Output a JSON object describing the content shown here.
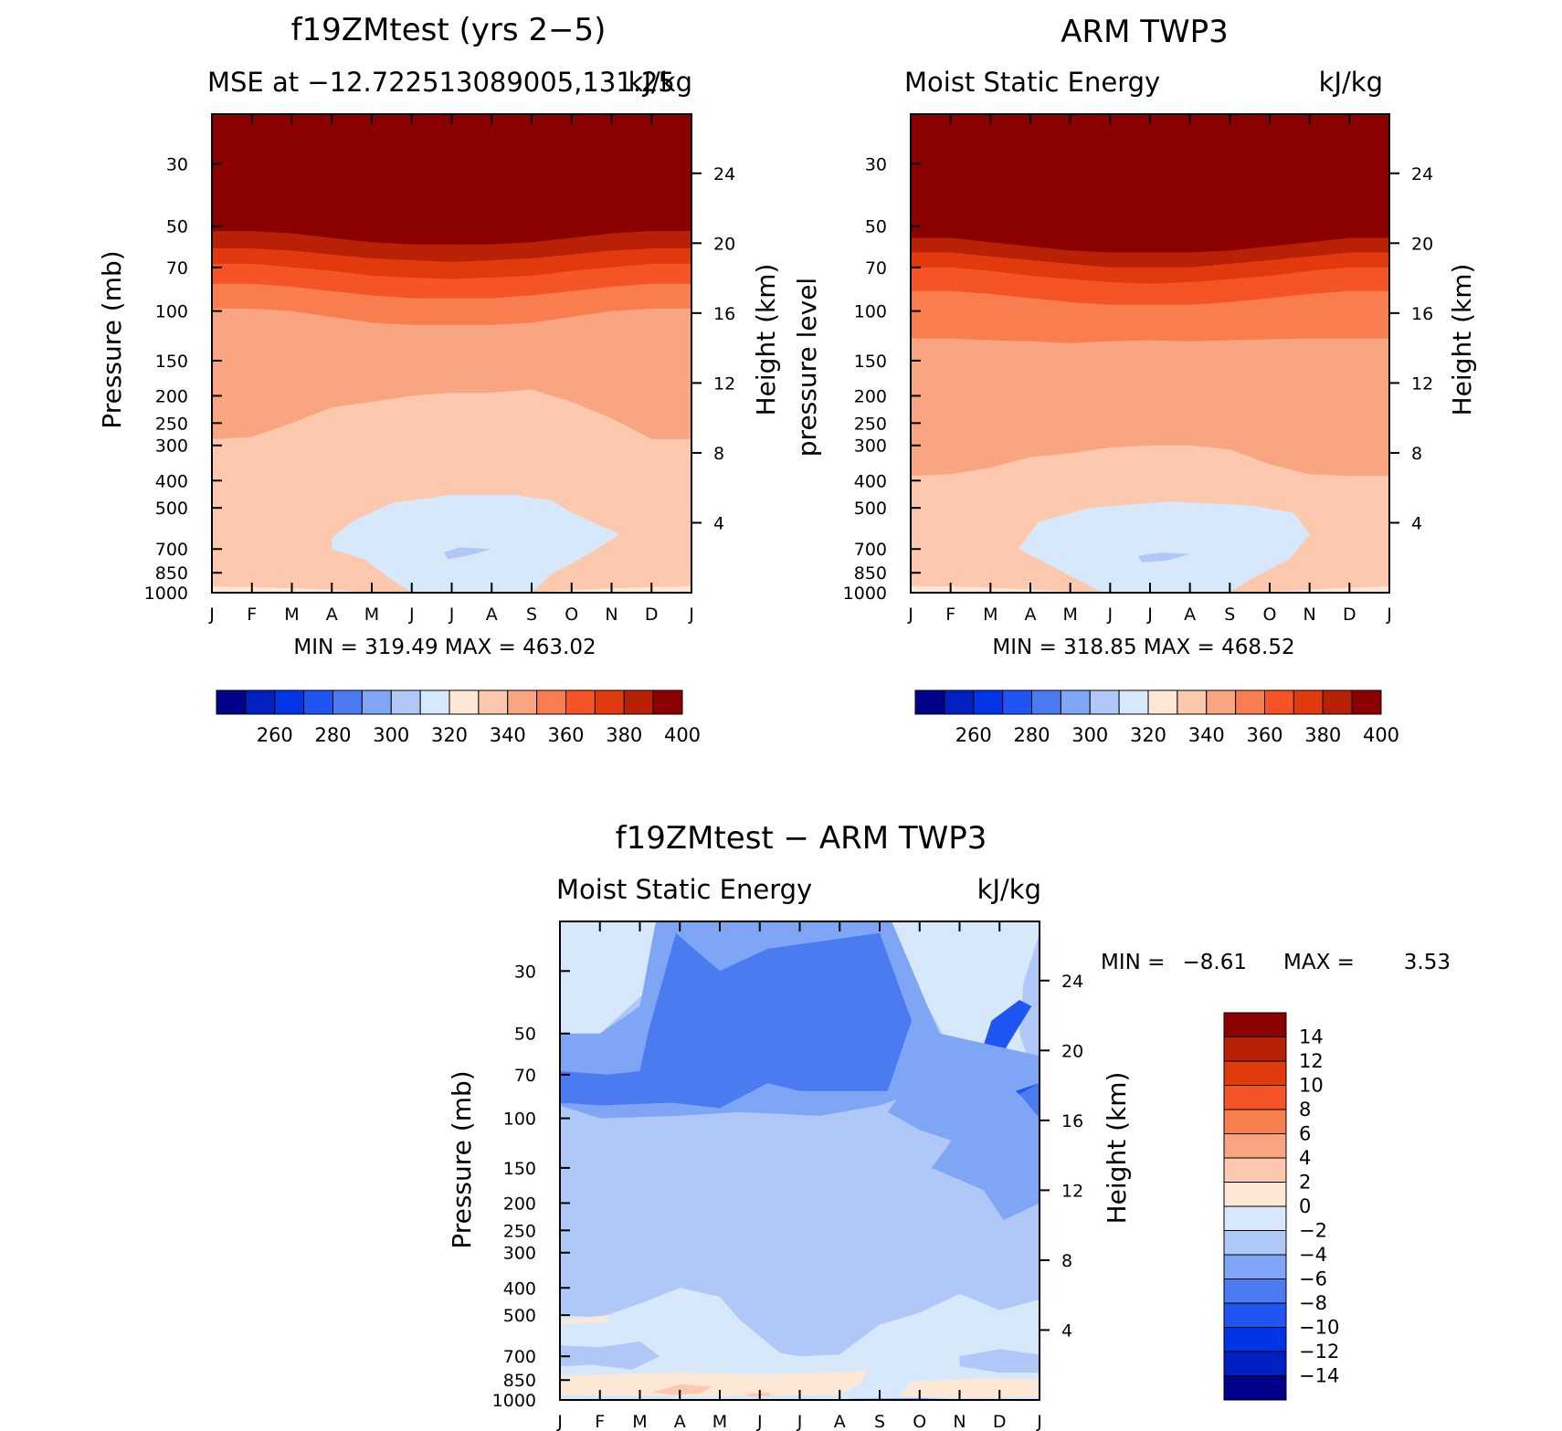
{
  "colors": {
    "scale": [
      "#00008b",
      "#0020c2",
      "#0035e6",
      "#1f55f2",
      "#4a7bf0",
      "#7fa5f5",
      "#b0c8f8",
      "#d8e8fb",
      "#fde8d6",
      "#fcc9ae",
      "#f9a582",
      "#f87e50",
      "#f55426",
      "#e03a0e",
      "#b82106",
      "#8b0000"
    ]
  },
  "chart_data": [
    {
      "type": "heatmap",
      "title": "f19ZMtest (yrs 2−5)",
      "subtitle_left": "MSE at −12.722513089005,131.25",
      "subtitle_right": "kJ/kg",
      "ylabel": "Pressure (mb)",
      "ylabel_right": "Height (km)",
      "x_ticks": [
        "J",
        "F",
        "M",
        "A",
        "M",
        "J",
        "J",
        "A",
        "S",
        "O",
        "N",
        "D",
        "J"
      ],
      "y_ticks": [
        "30",
        "50",
        "70",
        "100",
        "150",
        "200",
        "250",
        "300",
        "400",
        "500",
        "700",
        "850",
        "1000"
      ],
      "y_ticks_right": [
        "24",
        "20",
        "16",
        "12",
        "8",
        "4"
      ],
      "min_max": "MIN = 319.49  MAX = 463.02",
      "min": 319.49,
      "max": 463.02,
      "colorbar_labels": [
        "260",
        "280",
        "300",
        "320",
        "340",
        "360",
        "380",
        "400"
      ],
      "months": [
        "J",
        "F",
        "M",
        "A",
        "M",
        "J",
        "J",
        "A",
        "S",
        "O",
        "N",
        "D",
        "J"
      ],
      "contours": [
        {
          "color_index": 14,
          "pressure": [
            52,
            52,
            53,
            55,
            57,
            58,
            58,
            58,
            57,
            55,
            53,
            52,
            52
          ]
        },
        {
          "color_index": 13,
          "pressure": [
            60,
            60,
            61,
            63,
            65,
            66,
            67,
            66,
            65,
            63,
            61,
            60,
            60
          ]
        },
        {
          "color_index": 12,
          "pressure": [
            68,
            68,
            70,
            72,
            75,
            76,
            77,
            76,
            75,
            72,
            70,
            68,
            68
          ]
        },
        {
          "color_index": 11,
          "pressure": [
            80,
            80,
            82,
            85,
            88,
            90,
            90,
            90,
            88,
            85,
            82,
            80,
            80
          ]
        },
        {
          "color_index": 10,
          "pressure": [
            98,
            98,
            100,
            105,
            110,
            112,
            112,
            112,
            110,
            105,
            100,
            98,
            98
          ]
        },
        {
          "color_index": 9,
          "pressure": [
            285,
            280,
            250,
            220,
            210,
            200,
            195,
            195,
            190,
            210,
            240,
            285,
            285
          ]
        },
        {
          "color_index": 8,
          "pressure": [
            950,
            955,
            965,
            975,
            1000,
            1000,
            1000,
            1000,
            1000,
            980,
            965,
            955,
            950
          ]
        }
      ],
      "blue_region": {
        "color_index": 7,
        "months_pressure": [
          [
            3.0,
            640
          ],
          [
            3.5,
            560
          ],
          [
            4.5,
            480
          ],
          [
            6.0,
            450
          ],
          [
            7.5,
            450
          ],
          [
            8.5,
            470
          ],
          [
            9.0,
            520
          ],
          [
            10.2,
            620
          ],
          [
            9.5,
            720
          ],
          [
            8.5,
            860
          ],
          [
            8.0,
            1000
          ],
          [
            5.0,
            1000
          ],
          [
            4.5,
            900
          ],
          [
            3.8,
            760
          ],
          [
            3.0,
            700
          ]
        ]
      },
      "blue_core": {
        "color_index": 6,
        "months_pressure": [
          [
            5.8,
            720
          ],
          [
            6.2,
            690
          ],
          [
            7.0,
            700
          ],
          [
            6.4,
            740
          ],
          [
            5.9,
            760
          ]
        ]
      }
    },
    {
      "type": "heatmap",
      "title": "ARM TWP3",
      "subtitle_left": "Moist Static Energy",
      "subtitle_right": "kJ/kg",
      "ylabel": "pressure level",
      "ylabel_right": "Height (km)",
      "x_ticks": [
        "J",
        "F",
        "M",
        "A",
        "M",
        "J",
        "J",
        "A",
        "S",
        "O",
        "N",
        "D",
        "J"
      ],
      "y_ticks": [
        "30",
        "50",
        "70",
        "100",
        "150",
        "200",
        "250",
        "300",
        "400",
        "500",
        "700",
        "850",
        "1000"
      ],
      "y_ticks_right": [
        "24",
        "20",
        "16",
        "12",
        "8",
        "4"
      ],
      "min_max": "MIN = 318.85  MAX = 468.52",
      "min": 318.85,
      "max": 468.52,
      "colorbar_labels": [
        "260",
        "280",
        "300",
        "320",
        "340",
        "360",
        "380",
        "400"
      ],
      "months": [
        "J",
        "F",
        "M",
        "A",
        "M",
        "J",
        "J",
        "A",
        "S",
        "O",
        "N",
        "D",
        "J"
      ],
      "contours": [
        {
          "color_index": 14,
          "pressure": [
            55,
            55,
            57,
            59,
            61,
            62,
            62,
            62,
            61,
            59,
            57,
            55,
            55
          ]
        },
        {
          "color_index": 13,
          "pressure": [
            62,
            62,
            64,
            66,
            68,
            70,
            70,
            70,
            68,
            66,
            64,
            62,
            62
          ]
        },
        {
          "color_index": 12,
          "pressure": [
            70,
            70,
            72,
            75,
            77,
            79,
            80,
            79,
            77,
            75,
            72,
            70,
            70
          ]
        },
        {
          "color_index": 11,
          "pressure": [
            85,
            85,
            87,
            90,
            93,
            95,
            95,
            95,
            93,
            90,
            87,
            85,
            85
          ]
        },
        {
          "color_index": 10,
          "pressure": [
            125,
            125,
            127,
            128,
            130,
            128,
            127,
            128,
            127,
            126,
            125,
            125,
            125
          ]
        },
        {
          "color_index": 9,
          "pressure": [
            385,
            380,
            360,
            330,
            320,
            305,
            300,
            300,
            310,
            350,
            380,
            385,
            385
          ]
        },
        {
          "color_index": 8,
          "pressure": [
            950,
            950,
            960,
            975,
            990,
            1000,
            1000,
            1000,
            1000,
            990,
            975,
            960,
            950
          ]
        }
      ],
      "blue_region": {
        "color_index": 7,
        "months_pressure": [
          [
            2.7,
            700
          ],
          [
            3.2,
            560
          ],
          [
            4.5,
            500
          ],
          [
            6.5,
            475
          ],
          [
            8.5,
            490
          ],
          [
            9.6,
            520
          ],
          [
            10.0,
            620
          ],
          [
            9.5,
            760
          ],
          [
            8.5,
            900
          ],
          [
            8.0,
            1000
          ],
          [
            4.8,
            1000
          ],
          [
            4.2,
            900
          ],
          [
            3.5,
            800
          ]
        ]
      },
      "blue_core": {
        "color_index": 6,
        "months_pressure": [
          [
            5.7,
            740
          ],
          [
            6.3,
            720
          ],
          [
            7.0,
            730
          ],
          [
            6.4,
            770
          ],
          [
            5.8,
            780
          ]
        ]
      }
    },
    {
      "type": "heatmap",
      "title": "f19ZMtest − ARM TWP3",
      "subtitle_left": "Moist Static Energy",
      "subtitle_right": "kJ/kg",
      "ylabel": "Pressure (mb)",
      "ylabel_right": "Height (km)",
      "x_ticks": [
        "J",
        "F",
        "M",
        "A",
        "M",
        "J",
        "J",
        "A",
        "S",
        "O",
        "N",
        "D",
        "J"
      ],
      "y_ticks": [
        "30",
        "50",
        "70",
        "100",
        "150",
        "200",
        "250",
        "300",
        "400",
        "500",
        "700",
        "850",
        "1000"
      ],
      "y_ticks_right": [
        "24",
        "20",
        "16",
        "12",
        "8",
        "4"
      ],
      "min_max_label": "MIN =",
      "min_value": "−8.61",
      "max_label": "MAX =",
      "max_value": "3.53",
      "min": -8.61,
      "max": 3.53,
      "colorbar_labels": [
        "14",
        "12",
        "10",
        "8",
        "6",
        "4",
        "2",
        "0",
        "−2",
        "−4",
        "−6",
        "−8",
        "−10",
        "−12",
        "−14"
      ]
    }
  ]
}
